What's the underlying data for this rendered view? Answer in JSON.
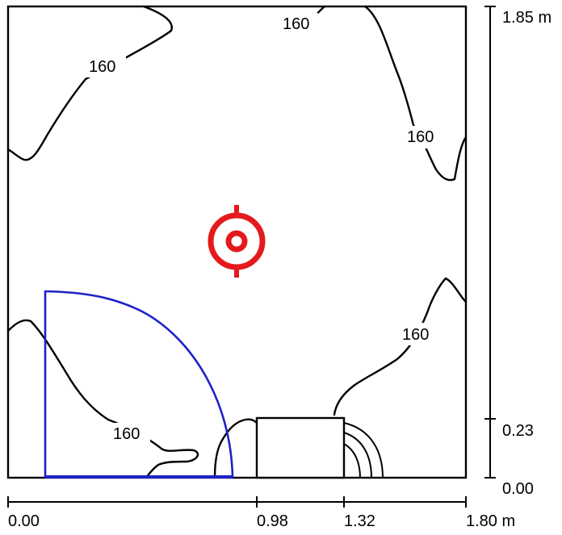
{
  "diagram": {
    "contour_value": "160",
    "contour_labels": [
      "160",
      "160",
      "160",
      "160",
      "160"
    ],
    "right_scale": {
      "labels": [
        "1.85 m",
        "0.23",
        "0.00"
      ]
    },
    "bottom_scale": {
      "labels": [
        "0.00",
        "0.98",
        "1.32",
        "1.80 m"
      ]
    },
    "colors": {
      "outline": "#000000",
      "isoline": "#000000",
      "luminaire": "#e41a1c",
      "door_arc": "#1e22c8"
    },
    "luminaire_icon": "target-icon"
  }
}
